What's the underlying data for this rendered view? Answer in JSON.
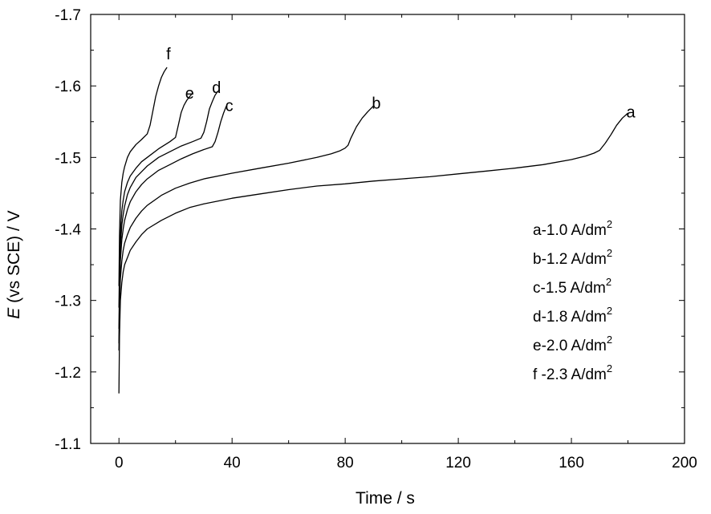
{
  "chart_data": {
    "type": "line",
    "title": "",
    "xlabel": "Time / s",
    "ylabel_italic": "E",
    "ylabel_rest": " (vs SCE) / V",
    "xlim": [
      -10,
      200
    ],
    "ylim": [
      -1.1,
      -1.7
    ],
    "xticks": [
      0,
      40,
      80,
      120,
      160,
      200
    ],
    "xtick_labels": [
      "0",
      "40",
      "80",
      "120",
      "160",
      "200"
    ],
    "yticks": [
      -1.1,
      -1.2,
      -1.3,
      -1.4,
      -1.5,
      -1.6,
      -1.7
    ],
    "ytick_labels": [
      "-1.1",
      "-1.2",
      "-1.3",
      "-1.4",
      "-1.5",
      "-1.6",
      "-1.7"
    ],
    "grid": false,
    "legend_placement": "bottom-right",
    "line_color": "#000000",
    "series": [
      {
        "name": "a",
        "legend": "a-1.0 A/dm",
        "legend_sup": "2",
        "label_at": [
          181,
          -1.556
        ],
        "x": [
          0,
          0.2,
          0.5,
          1,
          1.5,
          2,
          3,
          4,
          6,
          8,
          10,
          15,
          20,
          25,
          30,
          40,
          50,
          60,
          70,
          80,
          90,
          100,
          110,
          120,
          130,
          140,
          150,
          160,
          165,
          168,
          170,
          172,
          174,
          176,
          178,
          180
        ],
        "y": [
          -1.17,
          -1.25,
          -1.3,
          -1.325,
          -1.34,
          -1.35,
          -1.36,
          -1.37,
          -1.382,
          -1.392,
          -1.4,
          -1.412,
          -1.422,
          -1.43,
          -1.435,
          -1.443,
          -1.449,
          -1.455,
          -1.46,
          -1.463,
          -1.467,
          -1.47,
          -1.473,
          -1.477,
          -1.481,
          -1.485,
          -1.49,
          -1.497,
          -1.502,
          -1.506,
          -1.51,
          -1.52,
          -1.532,
          -1.545,
          -1.555,
          -1.562
        ]
      },
      {
        "name": "b",
        "legend": "b-1.2 A/dm",
        "legend_sup": "2",
        "label_at": [
          91,
          -1.568
        ],
        "x": [
          0,
          0.2,
          0.5,
          1,
          1.5,
          2,
          3,
          4,
          6,
          8,
          10,
          15,
          20,
          25,
          30,
          40,
          50,
          60,
          70,
          75,
          78,
          80,
          81,
          82,
          84,
          86,
          88,
          90
        ],
        "y": [
          -1.23,
          -1.29,
          -1.33,
          -1.355,
          -1.37,
          -1.38,
          -1.392,
          -1.402,
          -1.415,
          -1.425,
          -1.433,
          -1.447,
          -1.457,
          -1.464,
          -1.47,
          -1.478,
          -1.485,
          -1.492,
          -1.5,
          -1.505,
          -1.509,
          -1.513,
          -1.517,
          -1.527,
          -1.543,
          -1.555,
          -1.564,
          -1.572
        ]
      },
      {
        "name": "c",
        "legend": "c-1.5 A/dm",
        "legend_sup": "2",
        "label_at": [
          39,
          -1.565
        ],
        "x": [
          0,
          0.2,
          0.5,
          1,
          1.5,
          2,
          3,
          4,
          6,
          8,
          10,
          14,
          18,
          22,
          26,
          30,
          33,
          34,
          35,
          36,
          37,
          38
        ],
        "y": [
          -1.24,
          -1.31,
          -1.355,
          -1.385,
          -1.4,
          -1.412,
          -1.427,
          -1.438,
          -1.452,
          -1.462,
          -1.47,
          -1.482,
          -1.49,
          -1.498,
          -1.505,
          -1.511,
          -1.515,
          -1.522,
          -1.535,
          -1.55,
          -1.562,
          -1.572
        ]
      },
      {
        "name": "d",
        "legend": "d-1.8 A/dm",
        "legend_sup": "2",
        "label_at": [
          34.5,
          -1.59
        ],
        "x": [
          0,
          0.2,
          0.5,
          1,
          1.5,
          2,
          3,
          4,
          6,
          8,
          10,
          14,
          18,
          22,
          26,
          29,
          30,
          31,
          32,
          33,
          34,
          35
        ],
        "y": [
          -1.26,
          -1.33,
          -1.375,
          -1.405,
          -1.42,
          -1.432,
          -1.448,
          -1.458,
          -1.472,
          -1.48,
          -1.488,
          -1.5,
          -1.508,
          -1.516,
          -1.522,
          -1.527,
          -1.535,
          -1.55,
          -1.568,
          -1.578,
          -1.587,
          -1.593
        ]
      },
      {
        "name": "e",
        "legend": "e-2.0 A/dm",
        "legend_sup": "2",
        "label_at": [
          25,
          -1.582
        ],
        "x": [
          0,
          0.2,
          0.5,
          1,
          1.5,
          2,
          3,
          4,
          6,
          8,
          10,
          14,
          18,
          20,
          21,
          22,
          23,
          24,
          25,
          26
        ],
        "y": [
          -1.29,
          -1.35,
          -1.395,
          -1.425,
          -1.44,
          -1.452,
          -1.465,
          -1.474,
          -1.485,
          -1.494,
          -1.5,
          -1.512,
          -1.522,
          -1.528,
          -1.545,
          -1.563,
          -1.573,
          -1.58,
          -1.585,
          -1.59
        ]
      },
      {
        "name": "f",
        "legend": "f -2.3 A/dm",
        "legend_sup": "2",
        "label_at": [
          17.5,
          -1.637
        ],
        "x": [
          0,
          0.2,
          0.5,
          1,
          1.5,
          2,
          3,
          4,
          6,
          8,
          10,
          11,
          12,
          13,
          14,
          15,
          16,
          17
        ],
        "y": [
          -1.32,
          -1.39,
          -1.44,
          -1.465,
          -1.478,
          -1.487,
          -1.5,
          -1.508,
          -1.518,
          -1.525,
          -1.533,
          -1.545,
          -1.565,
          -1.585,
          -1.6,
          -1.612,
          -1.62,
          -1.626
        ]
      }
    ]
  }
}
